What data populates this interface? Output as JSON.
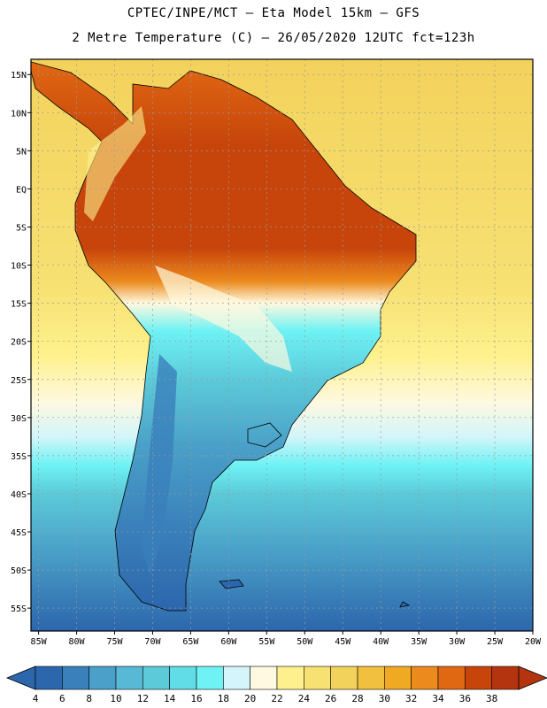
{
  "header": {
    "line1": "CPTEC/INPE/MCT –  Eta Model 15km – GFS",
    "line2": "2 Metre Temperature (C) – 26/05/2020 12UTC fct=123h"
  },
  "axes": {
    "lat_labels": [
      "15N",
      "10N",
      "5N",
      "EQ",
      "5S",
      "10S",
      "15S",
      "20S",
      "25S",
      "30S",
      "35S",
      "40S",
      "45S",
      "50S",
      "55S"
    ],
    "lon_labels": [
      "85W",
      "80W",
      "75W",
      "70W",
      "65W",
      "60W",
      "55W",
      "50W",
      "45W",
      "40W",
      "35W",
      "30W",
      "25W",
      "20W"
    ]
  },
  "colorbar": {
    "labels": [
      "4",
      "6",
      "8",
      "10",
      "12",
      "14",
      "16",
      "18",
      "20",
      "22",
      "24",
      "26",
      "28",
      "30",
      "32",
      "34",
      "36",
      "38"
    ],
    "colors": [
      "#2c66ac",
      "#3a80bb",
      "#4aa0c8",
      "#58b9d6",
      "#5ccad9",
      "#60dde6",
      "#6ef2f4",
      "#d3f5fb",
      "#fef9e0",
      "#fef18d",
      "#f7e173",
      "#f3d25c",
      "#f0c03e",
      "#f0a922",
      "#ec8a1d",
      "#e06812",
      "#c7450b",
      "#b43410"
    ]
  },
  "chart_data": {
    "type": "heatmap",
    "title": "2 Metre Temperature (C)",
    "model": "Eta Model 15km – GFS",
    "source": "CPTEC/INPE/MCT",
    "init": "26/05/2020 12UTC",
    "forecast_hours": 123,
    "units": "C",
    "lon_range": [
      -86,
      -20
    ],
    "lat_range": [
      -58,
      17
    ],
    "levels": [
      4,
      6,
      8,
      10,
      12,
      14,
      16,
      18,
      20,
      22,
      24,
      26,
      28,
      30,
      32,
      34,
      36,
      38
    ]
  }
}
